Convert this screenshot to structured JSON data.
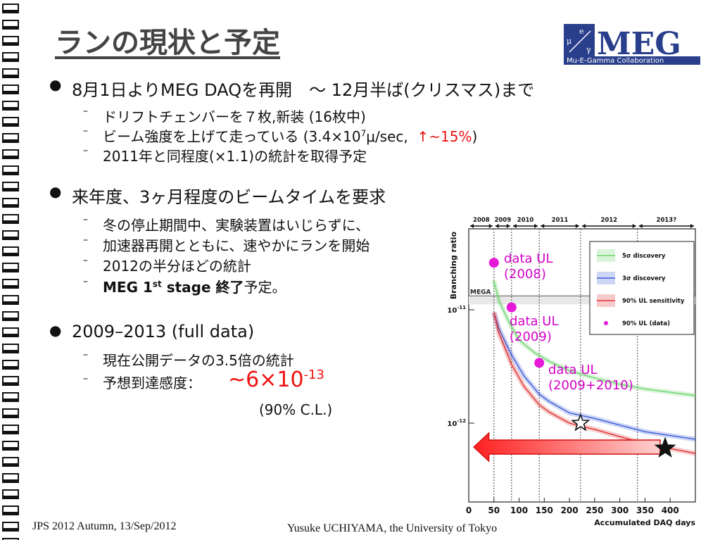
{
  "title": "ランの現状と予定",
  "logo": {
    "text": "MEG",
    "subtitle": "Mu-E-Gamma Collaboration",
    "mu": "μ",
    "e": "e",
    "gamma": "γ"
  },
  "bullets": [
    {
      "text": "8月1日よりMEG DAQを再開　～ 12月半ば(クリスマス)まで"
    },
    {
      "text": "来年度、3ヶ月程度のビームタイムを要求"
    },
    {
      "text": "2009–2013 (full data)"
    }
  ],
  "sub1": [
    "ドリフトチェンバーを７枚,新装 (16枚中)",
    "2011年と同程度(×1.1)の統計を取得予定"
  ],
  "sub1_beam": {
    "prefix": "ビーム強度を上げて走っている (3.4×10",
    "sup": "7",
    "unit": "μ/sec,  ",
    "red": "↑~15%",
    "close": ")"
  },
  "sub2": [
    "冬の停止期間中、実験装置はいじらずに、",
    "加速器再開とともに、速やかにランを開始",
    "2012の半分ほどの統計"
  ],
  "sub2_meg": {
    "bold1": "MEG 1",
    "sup": "st",
    "bold2": " stage 終了",
    "rest": "予定。"
  },
  "sub3": [
    "現在公開データの3.5倍の統計"
  ],
  "sensitivity": {
    "label": "予想到達感度：",
    "tilde": "~",
    "value": "6×10",
    "sup": "-13",
    "cl": "(90% C.L.)"
  },
  "footer": {
    "left": "JPS 2012 Autumn, 13/Sep/2012",
    "center": "Yusuke UCHIYAMA, the University of Tokyo"
  },
  "chart_data": {
    "type": "line",
    "ylabel": "Branching ratio",
    "xlabel": "Accumulated DAQ days",
    "x_ticks": [
      "0",
      "50",
      "100",
      "150",
      "200",
      "250",
      "300",
      "350",
      "400"
    ],
    "xlim": [
      0,
      450
    ],
    "y_ticks": [
      "10-11",
      "10-12"
    ],
    "years": [
      "2008",
      "2009",
      "2010",
      "2011",
      "2012",
      "2013?"
    ],
    "year_boundaries": [
      0,
      50,
      85,
      140,
      222,
      335,
      450
    ],
    "mega_label": "MEGA",
    "mega_value": 1.2e-11,
    "legend": [
      "5σ discovery",
      "3σ discovery",
      "90% UL sensitivity",
      "90% UL (data)"
    ],
    "series": [
      {
        "name": "5σ discovery",
        "color": "#6cd46c",
        "x": [
          50,
          60,
          80,
          100,
          130,
          160,
          200,
          250,
          300,
          350,
          450
        ],
        "y": [
          1.8e-11,
          1.2e-11,
          7.8e-12,
          5.4e-12,
          4.2e-12,
          3.5e-12,
          2.9e-12,
          2.5e-12,
          2.2e-12,
          2e-12,
          1.75e-12
        ]
      },
      {
        "name": "3σ discovery",
        "color": "#3b5bd9",
        "x": [
          50,
          60,
          85,
          110,
          140,
          160,
          200,
          250,
          300,
          350,
          450
        ],
        "y": [
          9.5e-12,
          6.8e-12,
          4e-12,
          2.6e-12,
          1.8e-12,
          1.55e-12,
          1.23e-12,
          1.1e-12,
          9.6e-13,
          8.4e-13,
          7.2e-13
        ]
      },
      {
        "name": "90% UL sensitivity",
        "color": "#e03030",
        "x": [
          50,
          60,
          85,
          110,
          140,
          160,
          200,
          250,
          300,
          350,
          450
        ],
        "y": [
          9.5e-12,
          6.2e-12,
          3.3e-12,
          2.1e-12,
          1.45e-12,
          1.25e-12,
          1e-12,
          8.8e-13,
          7.6e-13,
          6.6e-13,
          5.4e-13
        ]
      }
    ],
    "data_ul": [
      {
        "x": 50,
        "y": 2.6e-11,
        "label1": "data UL",
        "label2": "(2008)"
      },
      {
        "x": 85,
        "y": 1.05e-11,
        "label1": "data UL",
        "label2": "(2009)"
      },
      {
        "x": 140,
        "y": 3.4e-12,
        "label1": "data UL",
        "label2": "(2009+2010)"
      }
    ],
    "open_star": {
      "x": 222,
      "y": 1e-12
    },
    "filled_star": {
      "x": 390,
      "y": 6e-13
    }
  }
}
